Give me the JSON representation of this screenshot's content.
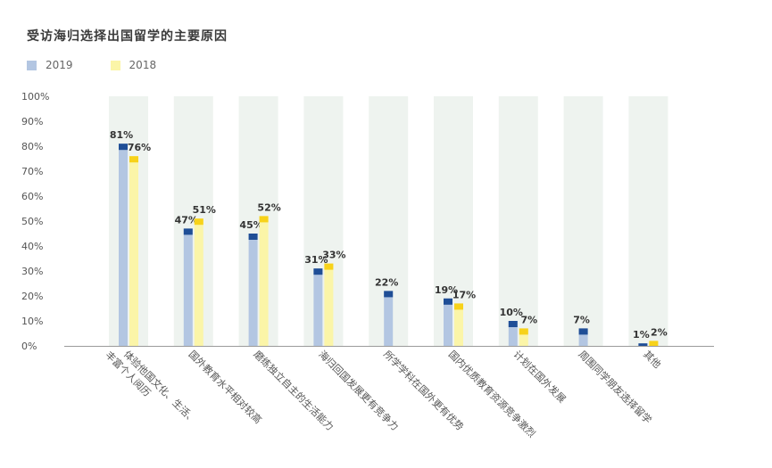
{
  "chart_data": {
    "type": "bar",
    "title": "受访海归选择出国留学的主要原因",
    "categories": [
      [
        "体验他国文化、生活、",
        "丰富个人阅历"
      ],
      [
        "国外教育水平相对较高"
      ],
      [
        "磨练独立自主的生活能力"
      ],
      [
        "海归回国发展更有竞争力"
      ],
      [
        "所学学科在国外更有优势"
      ],
      [
        "国内优质教育资源竞争激烈"
      ],
      [
        "计划在国外发展"
      ],
      [
        "周围同学朋友选择留学"
      ],
      [
        "其他"
      ]
    ],
    "series": [
      {
        "name": "2019",
        "values": [
          81,
          47,
          45,
          31,
          22,
          19,
          10,
          7,
          1
        ],
        "labels": [
          "81%",
          "47%",
          "45%",
          "31%",
          "22%",
          "19%",
          "10%",
          "7%",
          "1%"
        ]
      },
      {
        "name": "2018",
        "values": [
          76,
          51,
          52,
          33,
          null,
          17,
          7,
          null,
          2
        ],
        "labels": [
          "76%",
          "51%",
          "52%",
          "33%",
          "",
          "17%",
          "7%",
          "",
          "2%"
        ]
      }
    ],
    "ylim": [
      0,
      100
    ],
    "yticks": [
      "0%",
      "10%",
      "20%",
      "30%",
      "40%",
      "50%",
      "60%",
      "70%",
      "80%",
      "90%",
      "100%"
    ],
    "colors": {
      "2019_bar": "#b3c6e2",
      "2019_cap": "#1f4e96",
      "2018_bar": "#fbf5a8",
      "2018_cap": "#f7d21a",
      "background_column": "#eef3ef",
      "axis": "#9a9a9a"
    },
    "legend_position": "top-left",
    "grid": false
  }
}
